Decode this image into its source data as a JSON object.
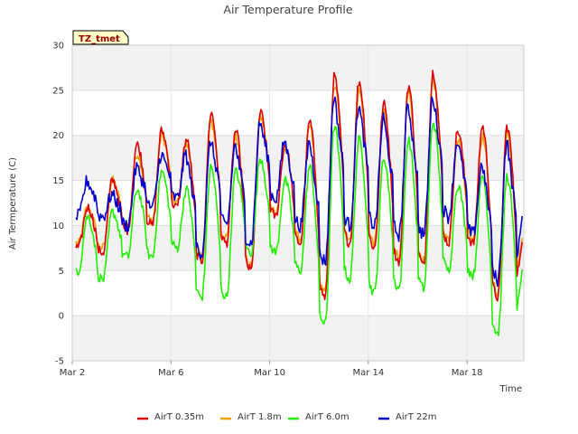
{
  "chart_data": {
    "type": "line",
    "title": "Air Temperature Profile",
    "xlabel": "Time",
    "ylabel": "Air Termperature (C)",
    "badge": "TZ_tmet",
    "x_start": "Mar 2",
    "x_end": "Mar 19.8",
    "xlim": [
      0,
      18.3
    ],
    "x_ticks": [
      {
        "value": 0,
        "label": "Mar 2"
      },
      {
        "value": 4,
        "label": "Mar 6"
      },
      {
        "value": 8,
        "label": "Mar 10"
      },
      {
        "value": 12,
        "label": "Mar 14"
      },
      {
        "value": 16,
        "label": "Mar 18"
      }
    ],
    "ylim": [
      -5,
      30
    ],
    "y_ticks": [
      -5,
      0,
      5,
      10,
      15,
      20,
      25,
      30
    ],
    "grid": true,
    "banded_background": true,
    "legend_position": "bottom",
    "series": [
      {
        "name": "AirT 0.35m",
        "color": "#dd0000"
      },
      {
        "name": "AirT 1.8m",
        "color": "#f0a000"
      },
      {
        "name": "AirT 6.0m",
        "color": "#22ee00"
      },
      {
        "name": "AirT 22m",
        "color": "#0000cc"
      }
    ],
    "daily_profile": {
      "day_offsets": [
        0,
        1,
        2,
        3,
        4,
        5,
        6,
        7,
        8,
        9,
        10,
        11,
        12,
        13,
        14,
        15,
        16,
        17
      ],
      "AirT 0.35m": {
        "min": [
          7.5,
          7.0,
          9.5,
          10.0,
          12.0,
          6.0,
          8.0,
          5.0,
          11.0,
          8.0,
          2.0,
          8.0,
          7.5,
          6.0,
          5.5,
          8.0,
          8.0,
          2.0
        ],
        "max": [
          12.0,
          15.0,
          19.0,
          20.5,
          19.5,
          22.5,
          20.5,
          22.5,
          19.0,
          21.5,
          26.5,
          26.0,
          23.5,
          25.5,
          27.0,
          20.5,
          21.0,
          21.0
        ]
      },
      "AirT 1.8m": {
        "min": [
          8.0,
          7.5,
          10.0,
          10.5,
          12.5,
          6.5,
          8.5,
          5.5,
          11.5,
          8.5,
          2.5,
          8.5,
          8.0,
          6.5,
          6.0,
          8.5,
          8.5,
          2.5
        ],
        "max": [
          12.0,
          15.0,
          18.0,
          20.0,
          19.0,
          21.5,
          20.0,
          22.0,
          18.5,
          21.0,
          25.5,
          25.0,
          22.5,
          24.5,
          26.0,
          19.5,
          20.0,
          20.0
        ]
      },
      "AirT 6.0m": {
        "min": [
          5.0,
          4.0,
          6.5,
          6.5,
          7.5,
          2.0,
          2.0,
          7.0,
          7.0,
          5.0,
          -1.0,
          4.0,
          2.5,
          3.0,
          3.0,
          5.0,
          4.5,
          -2.0
        ],
        "max": [
          11.0,
          11.5,
          14.0,
          16.0,
          14.0,
          16.5,
          16.0,
          17.5,
          15.0,
          16.5,
          21.0,
          19.5,
          17.5,
          19.5,
          21.5,
          14.5,
          15.5,
          15.5
        ]
      },
      "AirT 22m": {
        "min": [
          11.0,
          11.0,
          10.0,
          12.0,
          13.0,
          7.0,
          10.0,
          8.0,
          13.0,
          10.0,
          6.0,
          10.0,
          10.0,
          9.0,
          9.0,
          11.0,
          9.0,
          4.0
        ],
        "max": [
          15.0,
          13.5,
          16.5,
          18.0,
          18.0,
          19.5,
          19.0,
          21.5,
          19.5,
          19.5,
          24.5,
          23.5,
          22.0,
          23.5,
          24.5,
          19.5,
          17.0,
          19.5
        ]
      },
      "end_value": {
        "AirT 0.35m": 8.5,
        "AirT 1.8m": 9.0,
        "AirT 6.0m": 5.5,
        "AirT 22m": 11.5
      }
    }
  }
}
